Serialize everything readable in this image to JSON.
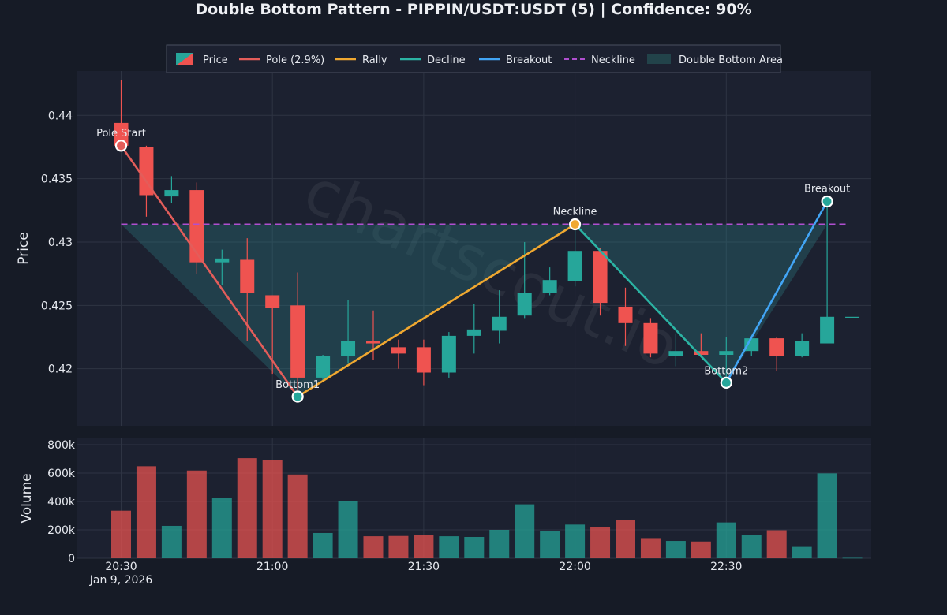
{
  "title": "Double Bottom Pattern - PIPPIN/USDT:USDT (5) | Confidence: 90%",
  "watermark": "chartscout.io",
  "colors": {
    "background": "#161b26",
    "panel": "#1c2130",
    "grid": "#2e3443",
    "bullish": "#26a69a",
    "bearish": "#ef5350",
    "pole": "#e35d5a",
    "rally": "#f0a830",
    "decline": "#2bb3a3",
    "breakout": "#42a5f5",
    "neckline": "#b04fd0",
    "area": "#2a7f86"
  },
  "legend": {
    "items": [
      {
        "label": "Price",
        "kind": "candle"
      },
      {
        "label": "Pole (2.9%)",
        "kind": "line",
        "color": "#e35d5a"
      },
      {
        "label": "Rally",
        "kind": "line",
        "color": "#f0a830"
      },
      {
        "label": "Decline",
        "kind": "line",
        "color": "#2bb3a3"
      },
      {
        "label": "Breakout",
        "kind": "line",
        "color": "#42a5f5"
      },
      {
        "label": "Neckline",
        "kind": "dash",
        "color": "#b04fd0"
      },
      {
        "label": "Double Bottom Area",
        "kind": "area",
        "color": "#22434a"
      }
    ]
  },
  "chart_data": {
    "type": "candlestick",
    "title": "Double Bottom Pattern - PIPPIN/USDT:USDT (5) | Confidence: 90%",
    "x_ticks": [
      "20:30",
      "21:00",
      "21:30",
      "22:00",
      "22:30"
    ],
    "x_sublabel": "Jan 9, 2026",
    "ylabel": "Price",
    "volume_ylabel": "Volume",
    "price_ylim": [
      0.4155,
      0.4435
    ],
    "price_ticks": [
      0.42,
      0.425,
      0.43,
      0.435,
      0.44
    ],
    "price_tick_labels": [
      "0.42",
      "0.425",
      "0.43",
      "0.435",
      "0.44"
    ],
    "volume_ylim": [
      0,
      850000
    ],
    "volume_ticks": [
      0,
      200000,
      400000,
      600000,
      800000
    ],
    "volume_tick_labels": [
      "0",
      "200k",
      "400k",
      "600k",
      "800k"
    ],
    "candles": [
      {
        "t": "20:30",
        "o": 0.4394,
        "h": 0.4428,
        "l": 0.4375,
        "c": 0.4376,
        "v": 335000
      },
      {
        "t": "20:35",
        "o": 0.4375,
        "h": 0.4376,
        "l": 0.432,
        "c": 0.4337,
        "v": 648000
      },
      {
        "t": "20:40",
        "o": 0.4336,
        "h": 0.4352,
        "l": 0.4331,
        "c": 0.4341,
        "v": 228000
      },
      {
        "t": "20:45",
        "o": 0.4341,
        "h": 0.4347,
        "l": 0.4275,
        "c": 0.4284,
        "v": 618000
      },
      {
        "t": "20:50",
        "o": 0.4284,
        "h": 0.4294,
        "l": 0.4266,
        "c": 0.4287,
        "v": 423000
      },
      {
        "t": "20:55",
        "o": 0.4286,
        "h": 0.4303,
        "l": 0.4222,
        "c": 0.426,
        "v": 705000
      },
      {
        "t": "21:00",
        "o": 0.4258,
        "h": 0.4258,
        "l": 0.4196,
        "c": 0.4248,
        "v": 693000
      },
      {
        "t": "21:05",
        "o": 0.425,
        "h": 0.4276,
        "l": 0.4178,
        "c": 0.4193,
        "v": 590000
      },
      {
        "t": "21:10",
        "o": 0.4193,
        "h": 0.4211,
        "l": 0.419,
        "c": 0.421,
        "v": 178000
      },
      {
        "t": "21:15",
        "o": 0.421,
        "h": 0.4254,
        "l": 0.4204,
        "c": 0.4222,
        "v": 405000
      },
      {
        "t": "21:20",
        "o": 0.4222,
        "h": 0.4246,
        "l": 0.4207,
        "c": 0.422,
        "v": 155000
      },
      {
        "t": "21:25",
        "o": 0.4217,
        "h": 0.4223,
        "l": 0.42,
        "c": 0.4212,
        "v": 157000
      },
      {
        "t": "21:30",
        "o": 0.4217,
        "h": 0.4223,
        "l": 0.4187,
        "c": 0.4197,
        "v": 163000
      },
      {
        "t": "21:35",
        "o": 0.4197,
        "h": 0.4229,
        "l": 0.4193,
        "c": 0.4226,
        "v": 155000
      },
      {
        "t": "21:40",
        "o": 0.4226,
        "h": 0.4251,
        "l": 0.4212,
        "c": 0.4231,
        "v": 150000
      },
      {
        "t": "21:45",
        "o": 0.423,
        "h": 0.4262,
        "l": 0.422,
        "c": 0.4241,
        "v": 200000
      },
      {
        "t": "21:50",
        "o": 0.4242,
        "h": 0.43,
        "l": 0.424,
        "c": 0.426,
        "v": 380000
      },
      {
        "t": "21:55",
        "o": 0.426,
        "h": 0.428,
        "l": 0.4258,
        "c": 0.427,
        "v": 190000
      },
      {
        "t": "22:00",
        "o": 0.4269,
        "h": 0.4314,
        "l": 0.4265,
        "c": 0.4293,
        "v": 237000
      },
      {
        "t": "22:05",
        "o": 0.4293,
        "h": 0.4295,
        "l": 0.4242,
        "c": 0.4252,
        "v": 222000
      },
      {
        "t": "22:10",
        "o": 0.4249,
        "h": 0.4264,
        "l": 0.4218,
        "c": 0.4236,
        "v": 270000
      },
      {
        "t": "22:15",
        "o": 0.4236,
        "h": 0.424,
        "l": 0.4209,
        "c": 0.4212,
        "v": 142000
      },
      {
        "t": "22:20",
        "o": 0.421,
        "h": 0.4228,
        "l": 0.4202,
        "c": 0.4214,
        "v": 122000
      },
      {
        "t": "22:25",
        "o": 0.4214,
        "h": 0.4228,
        "l": 0.421,
        "c": 0.4211,
        "v": 118000
      },
      {
        "t": "22:30",
        "o": 0.4211,
        "h": 0.4225,
        "l": 0.4189,
        "c": 0.4214,
        "v": 252000
      },
      {
        "t": "22:35",
        "o": 0.4214,
        "h": 0.4225,
        "l": 0.421,
        "c": 0.4224,
        "v": 162000
      },
      {
        "t": "22:40",
        "o": 0.4224,
        "h": 0.4225,
        "l": 0.4198,
        "c": 0.421,
        "v": 197000
      },
      {
        "t": "22:45",
        "o": 0.421,
        "h": 0.4228,
        "l": 0.4209,
        "c": 0.4222,
        "v": 80000
      },
      {
        "t": "22:50",
        "o": 0.422,
        "h": 0.4331,
        "l": 0.422,
        "c": 0.4241,
        "v": 598000
      },
      {
        "t": "22:55",
        "o": 0.4241,
        "h": 0.4241,
        "l": 0.4241,
        "c": 0.4241,
        "v": 3000
      }
    ],
    "pattern": {
      "points": [
        {
          "label": "Pole Start",
          "t": "20:30",
          "price": 0.4376
        },
        {
          "label": "Bottom1",
          "t": "21:05",
          "price": 0.4178
        },
        {
          "label": "Neckline",
          "t": "22:00",
          "price": 0.4314
        },
        {
          "label": "Bottom2",
          "t": "22:30",
          "price": 0.4189
        },
        {
          "label": "Breakout",
          "t": "22:50",
          "price": 0.4332
        }
      ],
      "neckline_price": 0.4314,
      "pole_label": "Pole (2.9%)",
      "confidence": "90%"
    }
  }
}
